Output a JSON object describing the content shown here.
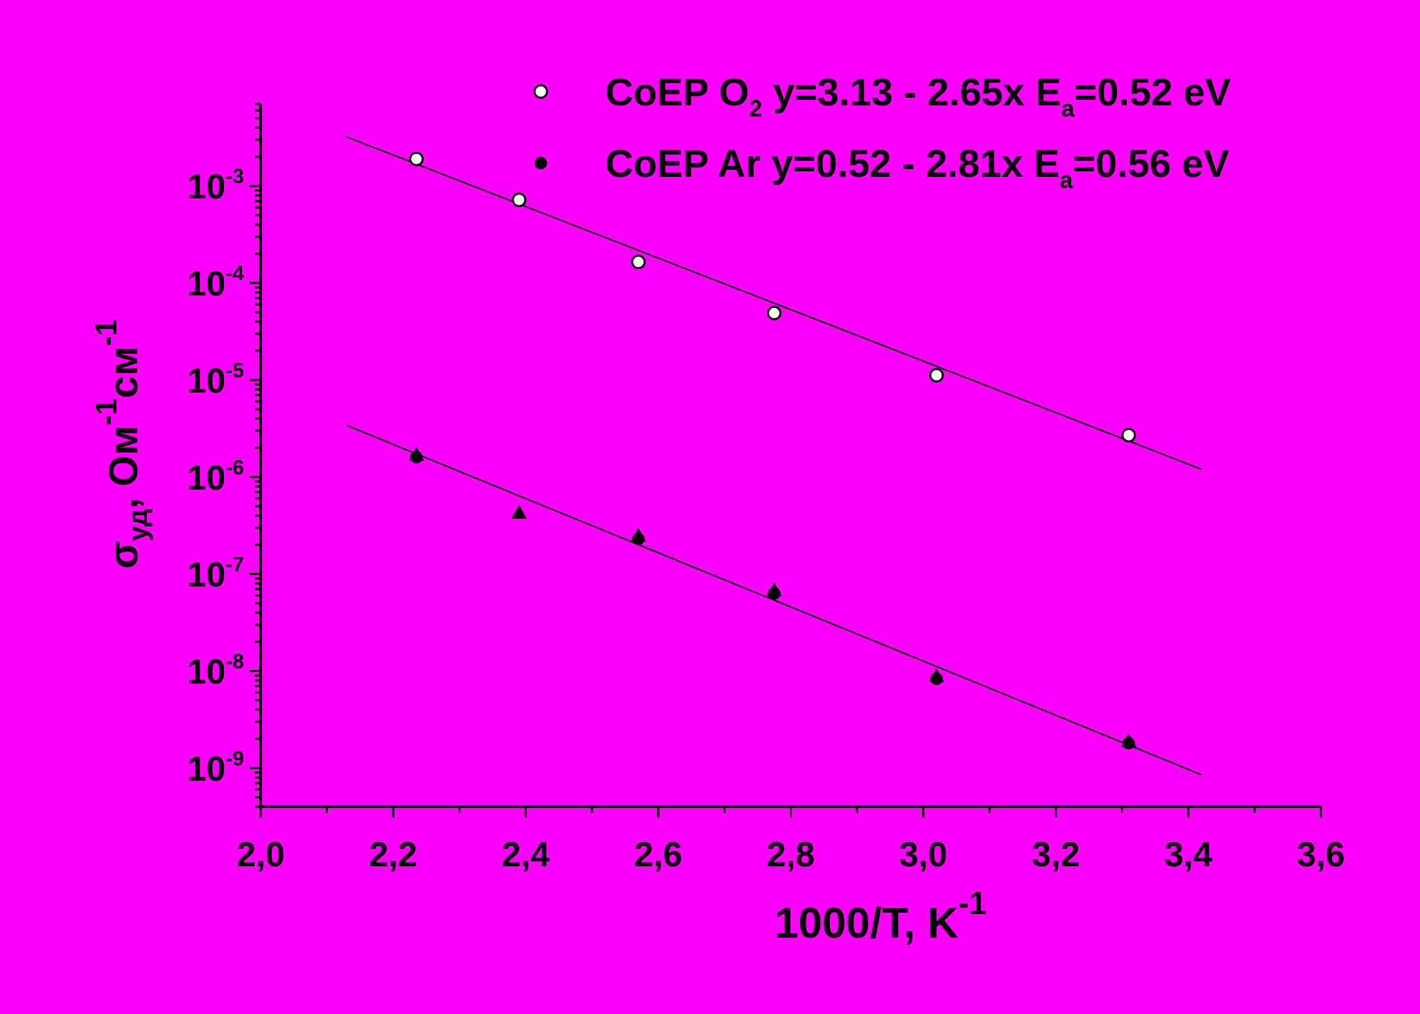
{
  "colors": {
    "background": "#ff00ff",
    "ink": "#000000",
    "open_marker": "#ffffff"
  },
  "chart_data": {
    "type": "scatter",
    "title": "",
    "xlabel": {
      "main": "1000/T, K",
      "sup": "-1"
    },
    "ylabel": {
      "sigma": "σ",
      "sigma_sub": "уд",
      "sep": ", Ом",
      "sup1": "-1",
      "unit2": "см",
      "sup2": "-1"
    },
    "x_ticks": [
      "2,0",
      "2,2",
      "2,4",
      "2,6",
      "2,8",
      "3,0",
      "3,2",
      "3,4",
      "3,6"
    ],
    "xlim": [
      2.0,
      3.6
    ],
    "y_scale": "log",
    "ylim": [
      4e-10,
      0.007
    ],
    "y_ticks": [
      {
        "value": 0.001,
        "base": "10",
        "exp": "-3"
      },
      {
        "value": 0.0001,
        "base": "10",
        "exp": "-4"
      },
      {
        "value": 1e-05,
        "base": "10",
        "exp": "-5"
      },
      {
        "value": 1e-06,
        "base": "10",
        "exp": "-6"
      },
      {
        "value": 1e-07,
        "base": "10",
        "exp": "-7"
      },
      {
        "value": 1e-08,
        "base": "10",
        "exp": "-8"
      },
      {
        "value": 1e-09,
        "base": "10",
        "exp": "-9"
      }
    ],
    "legend_position": "top-right",
    "legend": [
      {
        "marker": "open-circle",
        "pre": "CoEP O",
        "sub": "2",
        "mid": " y=3.13 - 2.65x E",
        "sub2": "a",
        "post": "=0.52 eV"
      },
      {
        "marker": "filled-circle",
        "pre": "CoEP Ar y=0.52 - 2.81x E",
        "sub": "a",
        "mid": "",
        "sub2": "",
        "post": "=0.56 eV"
      }
    ],
    "series": [
      {
        "marker": "open-circle",
        "x": [
          2.235,
          2.39,
          2.57,
          2.775,
          3.02,
          3.31
        ],
        "y": [
          0.0019,
          0.00072,
          0.000165,
          4.9e-05,
          1.12e-05,
          2.7e-06
        ],
        "fit": {
          "x": [
            2.13,
            3.42
          ],
          "y": [
            0.0032,
            1.2e-06
          ]
        }
      },
      {
        "marker": "filled-circle",
        "x": [
          2.235,
          2.57,
          2.775,
          3.02,
          3.31
        ],
        "y": [
          1.6e-06,
          2.3e-07,
          6.3e-08,
          8.3e-09,
          1.8e-09
        ],
        "fit": {
          "x": [
            2.13,
            3.42
          ],
          "y": [
            3.4e-06,
            8.5e-10
          ]
        }
      },
      {
        "marker": "filled-triangle",
        "x": [
          2.235,
          2.39,
          2.57,
          2.775,
          3.02,
          3.31
        ],
        "y": [
          1.7e-06,
          4.3e-07,
          2.5e-07,
          6.8e-08,
          8.9e-09,
          1.9e-09
        ]
      }
    ]
  }
}
